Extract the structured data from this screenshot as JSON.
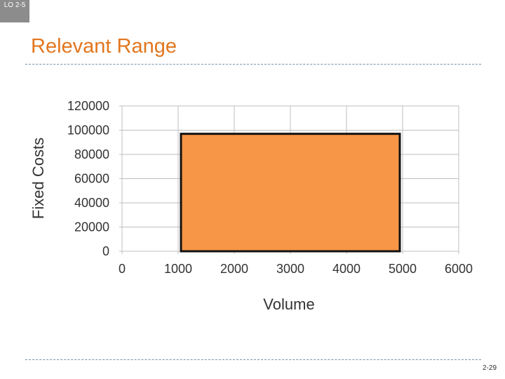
{
  "header": {
    "lo_badge": "LO 2-5",
    "title": "Relevant Range"
  },
  "footer": {
    "page_number": "2-29"
  },
  "colors": {
    "title": "#e2761e",
    "area_fill": "#f79646",
    "area_stroke": "#111111",
    "gridline": "#bfbfbf",
    "badge": "#8c8c8c"
  },
  "chart_data": {
    "type": "area",
    "title": "",
    "xlabel": "Volume",
    "ylabel": "Fixed Costs",
    "xlim": [
      0,
      6000
    ],
    "ylim": [
      0,
      120000
    ],
    "x_ticks": [
      "0",
      "1000",
      "2000",
      "3000",
      "4000",
      "5000",
      "6000"
    ],
    "y_ticks": [
      "0",
      "20000",
      "40000",
      "60000",
      "80000",
      "100000",
      "120000"
    ],
    "grid": true,
    "legend": "none",
    "series": [
      {
        "x": [
          1050,
          4950
        ],
        "y": [
          97000,
          97000
        ],
        "baseline": 0
      }
    ]
  }
}
